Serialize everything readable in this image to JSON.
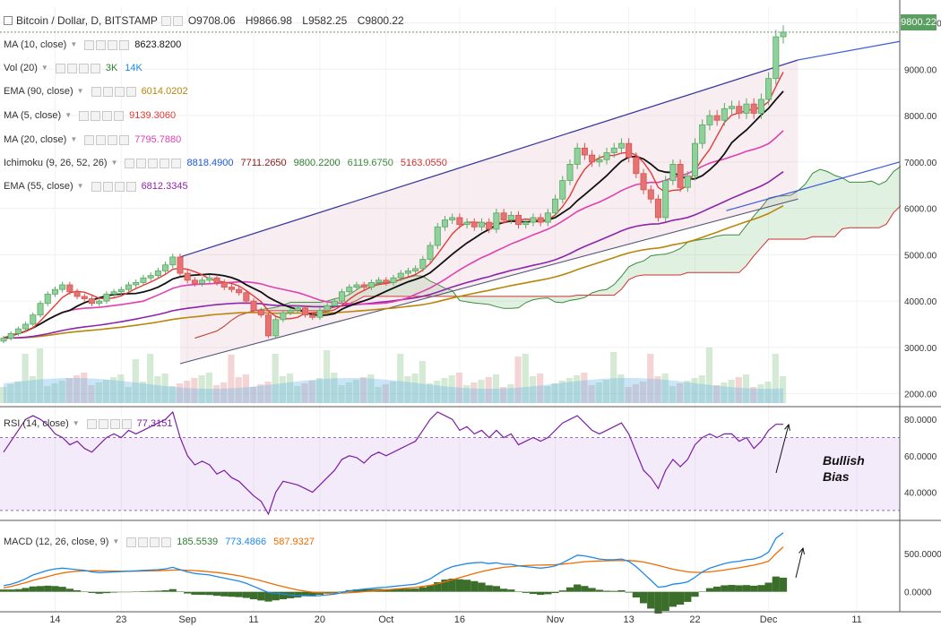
{
  "header": {
    "symbol": "Bitcoin / Dollar, D, BITSTAMP",
    "open": "O9708.06",
    "high": "H9866.98",
    "low": "L9582.25",
    "close": "C9800.22"
  },
  "indicators": [
    {
      "name": "MA (10, close)",
      "values": [
        "8623.8200"
      ],
      "colors": [
        "#111111"
      ],
      "ctrls": 4
    },
    {
      "name": "Vol (20)",
      "values": [
        "3K",
        "14K"
      ],
      "colors": [
        "#2e7d32",
        "#1e88e5"
      ],
      "ctrls": 4
    },
    {
      "name": "EMA (90, close)",
      "values": [
        "6014.0202"
      ],
      "colors": [
        "#b8860b"
      ],
      "ctrls": 4
    },
    {
      "name": "MA (5, close)",
      "values": [
        "9139.3060"
      ],
      "colors": [
        "#e53935"
      ],
      "ctrls": 4
    },
    {
      "name": "MA (20, close)",
      "values": [
        "7795.7880"
      ],
      "colors": [
        "#e040b0"
      ],
      "ctrls": 4
    },
    {
      "name": "Ichimoku (9, 26, 52, 26)",
      "values": [
        "8818.4900",
        "7711.2650",
        "9800.2200",
        "6119.6750",
        "5163.0550"
      ],
      "colors": [
        "#1e5bd8",
        "#8b1a1a",
        "#2e7d32",
        "#3c8c3c",
        "#d32f2f"
      ],
      "ctrls": 5
    },
    {
      "name": "EMA (55, close)",
      "values": [
        "6812.3345"
      ],
      "colors": [
        "#8e24aa"
      ],
      "ctrls": 4
    }
  ],
  "last_price_label": "9800.22",
  "rsi": {
    "label": "RSI (14, close)",
    "value": "77.3151",
    "value_color": "#7b1fa2"
  },
  "macd": {
    "label": "MACD (12, 26, close, 9)",
    "values": [
      "185.5539",
      "773.4866",
      "587.9327"
    ],
    "colors": [
      "#2e7d32",
      "#1e88e5",
      "#ef6c00"
    ]
  },
  "annotation": {
    "line1": "Bullish",
    "line2": "Bias"
  },
  "chart_data": {
    "type": "candlestick",
    "title": "Bitcoin / Dollar, D, BITSTAMP",
    "price_axis": {
      "range": [
        1800,
        10300
      ],
      "ticks": [
        "10000.00",
        "9000.00",
        "8000.00",
        "7000.00",
        "6000.00",
        "5000.00",
        "4000.00",
        "3000.00",
        "2000.00"
      ]
    },
    "time_axis": {
      "ticks": [
        "14",
        "23",
        "Sep",
        "11",
        "20",
        "Oct",
        "16",
        "Nov",
        "13",
        "22",
        "Dec",
        "11"
      ]
    },
    "rsi_axis": {
      "range": [
        25,
        85
      ],
      "ticks": [
        "80.0000",
        "60.0000",
        "40.0000"
      ]
    },
    "macd_axis": {
      "range": [
        -250,
        900
      ],
      "ticks": [
        "500.0000",
        "0.0000"
      ]
    },
    "closes": [
      3200,
      3300,
      3400,
      3500,
      3700,
      3950,
      4150,
      4250,
      4350,
      4200,
      4100,
      4050,
      3950,
      4000,
      4150,
      4200,
      4250,
      4350,
      4400,
      4500,
      4550,
      4650,
      4780,
      4950,
      4600,
      4450,
      4380,
      4450,
      4500,
      4400,
      4300,
      4250,
      4180,
      4000,
      3800,
      3700,
      3250,
      3600,
      3750,
      3800,
      3850,
      3700,
      3650,
      3800,
      3900,
      4000,
      4200,
      4300,
      4350,
      4300,
      4400,
      4450,
      4400,
      4500,
      4600,
      4650,
      4700,
      4900,
      5200,
      5600,
      5750,
      5800,
      5650,
      5700,
      5600,
      5700,
      5550,
      5900,
      5750,
      5850,
      5650,
      5700,
      5800,
      5700,
      5900,
      6200,
      6600,
      6950,
      7300,
      7150,
      7000,
      7050,
      7200,
      7300,
      7400,
      7100,
      6750,
      6400,
      6200,
      5800,
      6600,
      6950,
      6450,
      6700,
      7400,
      7800,
      8000,
      7900,
      8150,
      8200,
      8050,
      8250,
      8050,
      8350,
      8800,
      9700,
      9800
    ],
    "series": [
      {
        "name": "MA (10, close)"
      },
      {
        "name": "MA (5, close)"
      },
      {
        "name": "MA (20, close)"
      },
      {
        "name": "EMA (55, close)"
      },
      {
        "name": "EMA (90, close)"
      },
      {
        "name": "Ichimoku (9, 26, 52, 26)"
      }
    ],
    "channel": {
      "upper": [
        [
          4950,
          24
        ],
        [
          9200,
          108
        ]
      ],
      "lower": [
        [
          2650,
          24
        ],
        [
          6200,
          108
        ]
      ]
    },
    "rsi_values": [
      62,
      68,
      74,
      80,
      82,
      80,
      77,
      72,
      70,
      66,
      68,
      64,
      62,
      66,
      70,
      72,
      70,
      74,
      72,
      74,
      76,
      78,
      80,
      84,
      70,
      60,
      55,
      57,
      55,
      50,
      52,
      48,
      46,
      42,
      38,
      35,
      28,
      40,
      46,
      45,
      44,
      42,
      40,
      44,
      48,
      52,
      58,
      60,
      59,
      56,
      60,
      62,
      60,
      62,
      64,
      66,
      68,
      74,
      80,
      84,
      82,
      80,
      74,
      76,
      72,
      74,
      70,
      74,
      70,
      72,
      66,
      68,
      70,
      68,
      70,
      74,
      78,
      80,
      82,
      78,
      74,
      72,
      74,
      76,
      78,
      72,
      62,
      52,
      48,
      42,
      52,
      58,
      54,
      58,
      66,
      70,
      72,
      70,
      72,
      72,
      68,
      70,
      64,
      68,
      74,
      77.3,
      77.3
    ],
    "macd_values": [
      80,
      100,
      130,
      170,
      220,
      250,
      280,
      300,
      310,
      300,
      290,
      280,
      260,
      250,
      255,
      260,
      265,
      270,
      275,
      280,
      285,
      290,
      300,
      320,
      290,
      260,
      240,
      230,
      220,
      200,
      180,
      160,
      140,
      110,
      70,
      30,
      -10,
      -20,
      -30,
      -40,
      -50,
      -50,
      -55,
      -50,
      -40,
      -30,
      -10,
      10,
      25,
      35,
      45,
      55,
      60,
      70,
      80,
      90,
      100,
      130,
      170,
      230,
      290,
      330,
      350,
      370,
      380,
      385,
      370,
      380,
      360,
      360,
      340,
      330,
      320,
      310,
      320,
      340,
      380,
      430,
      480,
      470,
      450,
      430,
      420,
      420,
      430,
      400,
      330,
      240,
      150,
      60,
      70,
      100,
      110,
      130,
      190,
      260,
      310,
      340,
      370,
      390,
      400,
      420,
      430,
      460,
      520,
      700,
      773
    ],
    "signal_values": [
      50,
      70,
      95,
      120,
      150,
      175,
      200,
      225,
      245,
      260,
      270,
      275,
      275,
      275,
      272,
      270,
      270,
      270,
      270,
      272,
      274,
      276,
      280,
      285,
      285,
      282,
      278,
      270,
      262,
      252,
      240,
      225,
      210,
      190,
      168,
      144,
      118,
      92,
      68,
      45,
      25,
      8,
      -5,
      -12,
      -16,
      -18,
      -16,
      -12,
      -6,
      2,
      10,
      18,
      26,
      34,
      42,
      50,
      58,
      70,
      85,
      105,
      130,
      158,
      185,
      212,
      240,
      265,
      285,
      305,
      320,
      330,
      338,
      344,
      348,
      350,
      352,
      356,
      362,
      372,
      384,
      394,
      400,
      404,
      406,
      408,
      410,
      410,
      404,
      390,
      370,
      345,
      320,
      296,
      278,
      262,
      255,
      255,
      262,
      272,
      285,
      300,
      315,
      332,
      350,
      372,
      400,
      500,
      588
    ]
  }
}
